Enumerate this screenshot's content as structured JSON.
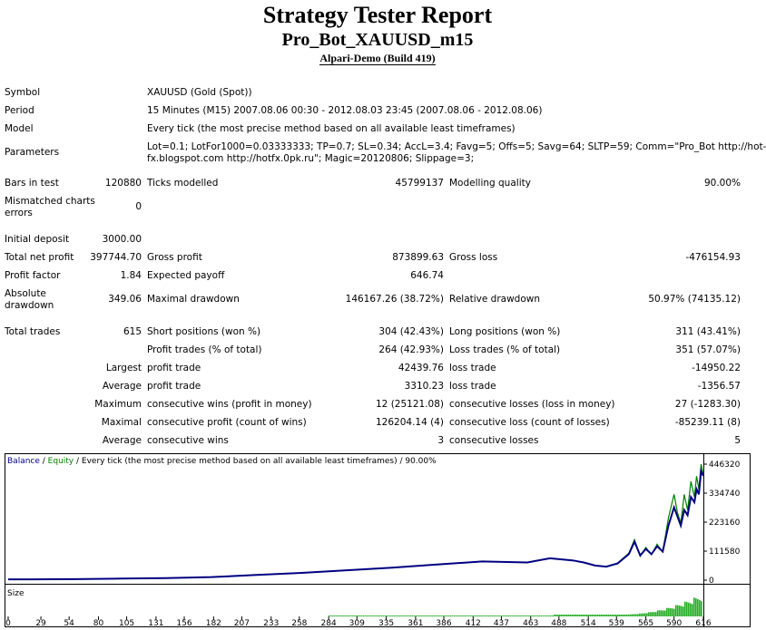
{
  "header": {
    "title": "Strategy Tester Report",
    "expert": "Pro_Bot_XAUUSD_m15",
    "server": "Alpari-Demo (Build 419)"
  },
  "report": {
    "symbol_label": "Symbol",
    "symbol_value": "XAUUSD (Gold (Spot))",
    "period_label": "Period",
    "period_value": "15 Minutes (M15) 2007.08.06 00:30 - 2012.08.03 23:45 (2007.08.06 - 2012.08.06)",
    "model_label": "Model",
    "model_value": "Every tick (the most precise method based on all available least timeframes)",
    "params_label": "Parameters",
    "params_line1": "Lot=0.1; LotFor1000=0.03333333; TP=0.7; SL=0.34; AccL=3.4; Favg=5; Offs=5; Savg=64; SLTP=59; Comm=\"Pro_Bot http://hot-",
    "params_line2": "fx.blogspot.com http://hotfx.0pk.ru\"; Magic=20120806; Slippage=3;",
    "bars_label": "Bars in test",
    "bars_value": "120880",
    "ticks_label": "Ticks modelled",
    "ticks_value": "45799137",
    "quality_label": "Modelling quality",
    "quality_value": "90.00%",
    "mismatch_label1": "Mismatched charts",
    "mismatch_label2": "errors",
    "mismatch_value": "0",
    "deposit_label": "Initial deposit",
    "deposit_value": "3000.00",
    "netprofit_label": "Total net profit",
    "netprofit_value": "397744.70",
    "grossprofit_label": "Gross profit",
    "grossprofit_value": "873899.63",
    "grossloss_label": "Gross loss",
    "grossloss_value": "-476154.93",
    "pf_label": "Profit factor",
    "pf_value": "1.84",
    "payoff_label": "Expected payoff",
    "payoff_value": "646.74",
    "absdd_label1": "Absolute",
    "absdd_label2": "drawdown",
    "absdd_value": "349.06",
    "maxdd_label": "Maximal drawdown",
    "maxdd_value": "146167.26 (38.72%)",
    "reldd_label": "Relative drawdown",
    "reldd_value": "50.97% (74135.12)",
    "trades_label": "Total trades",
    "trades_value": "615",
    "short_label": "Short positions (won %)",
    "short_value": "304 (42.43%)",
    "long_label": "Long positions (won %)",
    "long_value": "311 (43.41%)",
    "ptrades_label": "Profit trades (% of total)",
    "ptrades_value": "264 (42.93%)",
    "ltrades_label": "Loss trades (% of total)",
    "ltrades_value": "351 (57.07%)",
    "largest_label": "Largest",
    "lp_label": "profit trade",
    "lp_value": "42439.76",
    "ll_label": "loss trade",
    "ll_value": "-14950.22",
    "average_label": "Average",
    "ap_label": "profit trade",
    "ap_value": "3310.23",
    "al_label": "loss trade",
    "al_value": "-1356.57",
    "maximum_label": "Maximum",
    "mcw_label": "consecutive wins (profit in money)",
    "mcw_value": "12 (25121.08)",
    "mcl_label": "consecutive losses (loss in money)",
    "mcl_value": "27 (-1283.30)",
    "maximal_label": "Maximal",
    "mcp_label": "consecutive profit (count of wins)",
    "mcp_value": "126204.14 (4)",
    "mclo_label": "consecutive loss (count of losses)",
    "mclo_value": "-85239.11 (8)",
    "average2_label": "Average",
    "acw_label": "consecutive wins",
    "acw_value": "3",
    "acl_label": "consecutive losses",
    "acl_value": "5"
  },
  "chart_data": {
    "type": "line",
    "legend_balance": "Balance",
    "legend_sep1": " / ",
    "legend_equity": "Equity",
    "legend_rest": " / Every tick (the most precise method based on all available least timeframes) / 90.00%",
    "size_label": "Size",
    "y_ticks": [
      "446320",
      "334740",
      "223160",
      "111580",
      "0"
    ],
    "y_tick_values": [
      446320,
      334740,
      223160,
      111580,
      0
    ],
    "x_ticks": [
      "0",
      "29",
      "54",
      "80",
      "105",
      "131",
      "156",
      "182",
      "207",
      "233",
      "258",
      "284",
      "309",
      "335",
      "361",
      "386",
      "412",
      "437",
      "463",
      "488",
      "514",
      "539",
      "565",
      "590",
      "616"
    ],
    "x_tick_values": [
      0,
      29,
      54,
      80,
      105,
      131,
      156,
      182,
      207,
      233,
      258,
      284,
      309,
      335,
      361,
      386,
      412,
      437,
      463,
      488,
      514,
      539,
      565,
      590,
      616
    ],
    "xlim": [
      0,
      616
    ],
    "ylim": [
      0,
      446320
    ],
    "series": [
      {
        "name": "Balance",
        "color": "#000080",
        "x": [
          0,
          20,
          60,
          100,
          140,
          180,
          220,
          260,
          300,
          340,
          380,
          420,
          460,
          480,
          500,
          510,
          520,
          530,
          540,
          550,
          555,
          560,
          565,
          570,
          575,
          580,
          585,
          590,
          593,
          596,
          599,
          602,
          605,
          608,
          610,
          612,
          614,
          616
        ],
        "y": [
          3000,
          3000,
          4000,
          6000,
          8000,
          12000,
          20000,
          28000,
          38000,
          48000,
          60000,
          72000,
          68000,
          84000,
          76000,
          68000,
          56000,
          52000,
          64000,
          100000,
          148000,
          95000,
          120000,
          100000,
          130000,
          110000,
          210000,
          280000,
          245000,
          210000,
          270000,
          250000,
          320000,
          300000,
          350000,
          330000,
          420000,
          400744
        ]
      },
      {
        "name": "Equity",
        "color": "#008000",
        "x": [
          0,
          20,
          60,
          100,
          140,
          180,
          220,
          260,
          300,
          340,
          380,
          420,
          460,
          480,
          500,
          510,
          520,
          530,
          540,
          550,
          555,
          560,
          565,
          570,
          575,
          580,
          585,
          590,
          593,
          596,
          599,
          602,
          605,
          608,
          610,
          612,
          614,
          616
        ],
        "y": [
          3000,
          3000,
          4000,
          6000,
          8000,
          12000,
          20000,
          28000,
          38000,
          48000,
          60000,
          72000,
          68000,
          84000,
          76000,
          68000,
          56000,
          52000,
          66000,
          104000,
          156000,
          92000,
          126000,
          98000,
          138000,
          108000,
          240000,
          330000,
          260000,
          220000,
          330000,
          270000,
          380000,
          320000,
          400000,
          350000,
          446320,
          405000
        ]
      }
    ],
    "size_bars_start_x": 284,
    "size_bars_max_level": 1.0
  }
}
